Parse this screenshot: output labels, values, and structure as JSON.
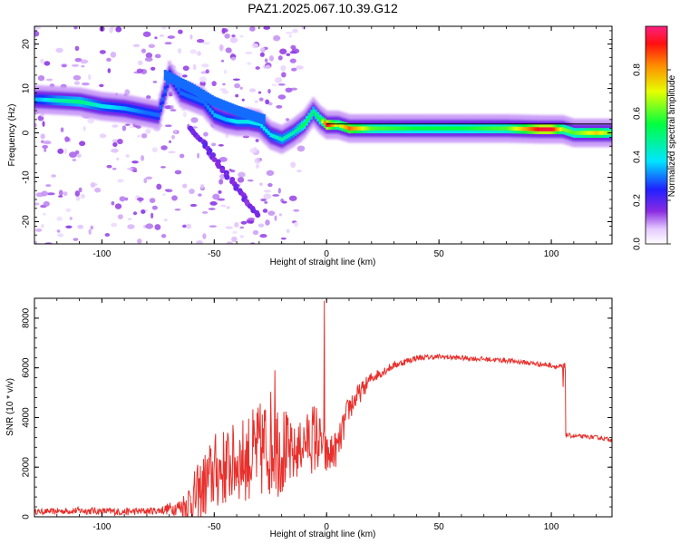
{
  "chart_data": [
    {
      "type": "heatmap",
      "title": "PAZ1.2025.067.10.39.G12",
      "xlabel": "Height of straight line (km)",
      "ylabel": "Frequency (Hz)",
      "xlim": [
        -130,
        127
      ],
      "ylim": [
        -25,
        24
      ],
      "xticks": [
        -100,
        -50,
        0,
        50,
        100
      ],
      "yticks": [
        -20,
        -10,
        0,
        10,
        20
      ],
      "colorbar": {
        "label": "Normalized spectral amplitude",
        "range": [
          0,
          1
        ],
        "ticks": [
          "0.0",
          "0.2",
          "0.4",
          "0.6",
          "0.8"
        ],
        "colormap": "hsv-rainbow (white → purple → blue → cyan → green → yellow → red → magenta)"
      },
      "ridge": {
        "description": "dominant frequency track, frequency (Hz) vs height (km) with normalized amplitude",
        "x": [
          -128,
          -120,
          -110,
          -100,
          -90,
          -80,
          -75,
          -70,
          -65,
          -60,
          -55,
          -50,
          -45,
          -40,
          -35,
          -30,
          -25,
          -20,
          -15,
          -10,
          -6,
          -3,
          0,
          5,
          10,
          20,
          40,
          60,
          80,
          95,
          100,
          105,
          110,
          120,
          127
        ],
        "freq": [
          7.5,
          7.3,
          7.0,
          6.0,
          5.5,
          4.5,
          4.0,
          13.0,
          9.0,
          8.0,
          7.0,
          4.0,
          3.0,
          2.5,
          2.5,
          2.0,
          -0.5,
          -1.5,
          0.0,
          2.0,
          4.8,
          3.0,
          1.8,
          1.8,
          1.0,
          1.0,
          1.0,
          1.0,
          1.0,
          0.8,
          0.8,
          0.8,
          0.0,
          0.0,
          0.0
        ],
        "amplitude": [
          0.35,
          0.45,
          0.5,
          0.4,
          0.35,
          0.3,
          0.3,
          0.3,
          0.3,
          0.3,
          0.3,
          0.35,
          0.35,
          0.4,
          0.4,
          0.4,
          0.4,
          0.45,
          0.45,
          0.55,
          0.5,
          0.55,
          0.95,
          0.65,
          0.85,
          0.6,
          0.55,
          0.55,
          0.6,
          0.95,
          0.95,
          0.65,
          0.6,
          0.75,
          0.6
        ]
      }
    },
    {
      "type": "line",
      "xlabel": "Height of straight line (km)",
      "ylabel": "SNR (10 * v/v)",
      "xlim": [
        -130,
        127
      ],
      "ylim": [
        0,
        8800
      ],
      "xticks": [
        -100,
        -50,
        0,
        50,
        100
      ],
      "yticks": [
        0,
        2000,
        4000,
        6000,
        8000
      ],
      "color": "#e8302c",
      "series": [
        {
          "x": [
            -130,
            -110,
            -90,
            -75,
            -65,
            -58,
            -50,
            -45,
            -40,
            -35,
            -30,
            -25,
            -20,
            -15,
            -10,
            -5,
            -2,
            0,
            5,
            10,
            15,
            20,
            30,
            40,
            50,
            60,
            70,
            80,
            90,
            100,
            105,
            106,
            110,
            120,
            127
          ],
          "y": [
            200,
            250,
            200,
            250,
            400,
            800,
            1800,
            2000,
            2200,
            2400,
            2600,
            3000,
            2800,
            2400,
            3000,
            3200,
            2900,
            2400,
            2800,
            4400,
            5000,
            5600,
            6100,
            6400,
            6450,
            6400,
            6350,
            6300,
            6200,
            6100,
            6000,
            3300,
            3250,
            3200,
            3100
          ],
          "noise": [
            100,
            150,
            150,
            150,
            350,
            1200,
            1600,
            1600,
            1600,
            1800,
            2000,
            2200,
            2000,
            1200,
            1000,
            1600,
            900,
            900,
            700,
            600,
            400,
            250,
            150,
            120,
            100,
            100,
            100,
            100,
            100,
            100,
            150,
            100,
            80,
            80,
            80
          ],
          "peaks": [
            {
              "x": -23,
              "y": 5900
            },
            {
              "x": -1,
              "y": 8700
            }
          ]
        }
      ]
    }
  ]
}
